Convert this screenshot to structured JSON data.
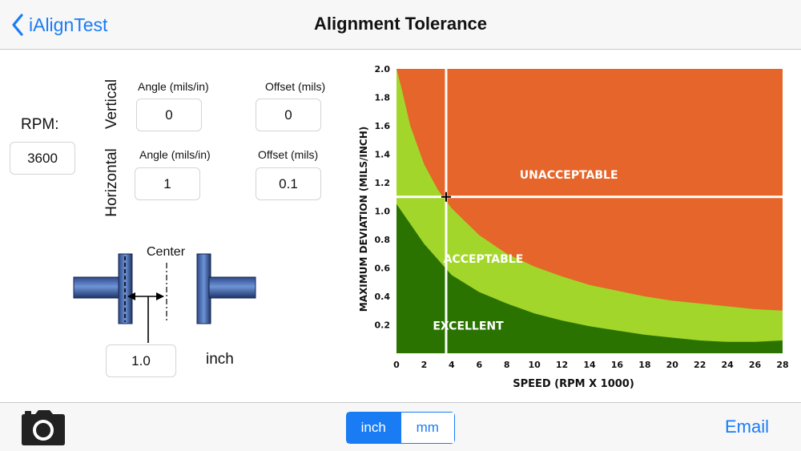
{
  "nav": {
    "back_label": "iAlignTest",
    "title": "Alignment Tolerance"
  },
  "form": {
    "rpm_label": "RPM:",
    "rpm_value": "3600",
    "vertical_label": "Vertical",
    "horizontal_label": "Horizontal",
    "vertical": {
      "angle_label": "Angle (mils/in)",
      "angle_value": "0",
      "offset_label": "Offset (mils)",
      "offset_value": "0"
    },
    "horizontal": {
      "angle_label": "Angle (mils/in)",
      "angle_value": "1",
      "offset_label": "Offset (mils)",
      "offset_value": "0.1"
    },
    "diagram_center_label": "Center",
    "distance_value": "1.0",
    "distance_unit": "inch"
  },
  "chart_data": {
    "type": "area",
    "xlabel": "SPEED (RPM X 1000)",
    "ylabel": "MAXIMUM DEVIATION (MILS/INCH)",
    "xlim": [
      0,
      28
    ],
    "ylim": [
      0,
      2.0
    ],
    "x_ticks": [
      "0",
      "2",
      "4",
      "6",
      "8",
      "10",
      "12",
      "14",
      "16",
      "18",
      "20",
      "22",
      "24",
      "26",
      "28"
    ],
    "y_ticks": [
      "0.2",
      "0.4",
      "0.6",
      "0.8",
      "1.0",
      "1.2",
      "1.4",
      "1.6",
      "1.8",
      "2.0"
    ],
    "regions": [
      {
        "name": "EXCELLENT",
        "color": "#2a7300",
        "label_x": 5.2,
        "label_y": 0.19
      },
      {
        "name": "ACCEPTABLE",
        "color": "#a3d62a",
        "label_x": 6.3,
        "label_y": 0.66
      },
      {
        "name": "UNACCEPTABLE",
        "color": "#e5652a",
        "label_x": 12.5,
        "label_y": 1.25
      }
    ],
    "boundaries": {
      "excellent_upper": [
        [
          0,
          1.05
        ],
        [
          1,
          0.91
        ],
        [
          2,
          0.77
        ],
        [
          3,
          0.66
        ],
        [
          4,
          0.55
        ],
        [
          6,
          0.43
        ],
        [
          8,
          0.35
        ],
        [
          10,
          0.28
        ],
        [
          12,
          0.23
        ],
        [
          14,
          0.19
        ],
        [
          16,
          0.16
        ],
        [
          18,
          0.13
        ],
        [
          20,
          0.11
        ],
        [
          22,
          0.09
        ],
        [
          24,
          0.08
        ],
        [
          26,
          0.08
        ],
        [
          28,
          0.09
        ]
      ],
      "acceptable_upper": [
        [
          0,
          2.0
        ],
        [
          0.4,
          1.85
        ],
        [
          1,
          1.6
        ],
        [
          2,
          1.33
        ],
        [
          3,
          1.15
        ],
        [
          4,
          1.02
        ],
        [
          6,
          0.83
        ],
        [
          8,
          0.7
        ],
        [
          10,
          0.61
        ],
        [
          12,
          0.54
        ],
        [
          14,
          0.48
        ],
        [
          16,
          0.44
        ],
        [
          18,
          0.4
        ],
        [
          20,
          0.37
        ],
        [
          22,
          0.35
        ],
        [
          24,
          0.33
        ],
        [
          26,
          0.31
        ],
        [
          28,
          0.3
        ]
      ]
    },
    "marker": {
      "x": 3.6,
      "y": 1.1
    },
    "grid": false,
    "colors": {
      "accent": "#1a7cf5",
      "crosshair": "#ffffff"
    }
  },
  "toolbar": {
    "units": [
      {
        "label": "inch",
        "active": true
      },
      {
        "label": "mm",
        "active": false
      }
    ],
    "email_label": "Email"
  }
}
